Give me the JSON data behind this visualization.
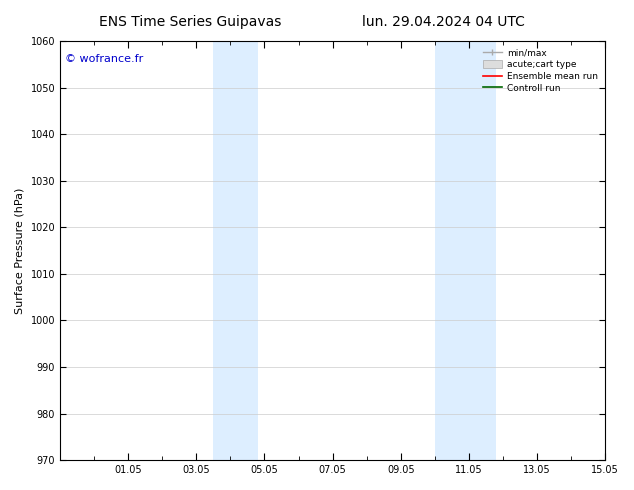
{
  "title_left": "ENS Time Series Guipavas",
  "title_right": "lun. 29.04.2024 04 UTC",
  "ylabel": "Surface Pressure (hPa)",
  "ylim": [
    970,
    1060
  ],
  "yticks": [
    970,
    980,
    990,
    1000,
    1010,
    1020,
    1030,
    1040,
    1050,
    1060
  ],
  "xtick_labels": [
    "01.05",
    "03.05",
    "05.05",
    "07.05",
    "09.05",
    "11.05",
    "13.05",
    "15.05"
  ],
  "xtick_positions": [
    2,
    4,
    6,
    8,
    10,
    12,
    14,
    16
  ],
  "xlim": [
    0,
    16
  ],
  "shaded_bands": [
    {
      "x_start": 4.5,
      "x_end": 5.0
    },
    {
      "x_start": 5.0,
      "x_end": 5.8
    },
    {
      "x_start": 11.0,
      "x_end": 11.5
    },
    {
      "x_start": 11.5,
      "x_end": 12.8
    }
  ],
  "shaded_color": "#ddeeff",
  "background_color": "#ffffff",
  "watermark_text": "© wofrance.fr",
  "watermark_color": "#0000cc",
  "grid_color": "#cccccc",
  "tick_fontsize": 7,
  "label_fontsize": 8,
  "title_fontsize": 10
}
